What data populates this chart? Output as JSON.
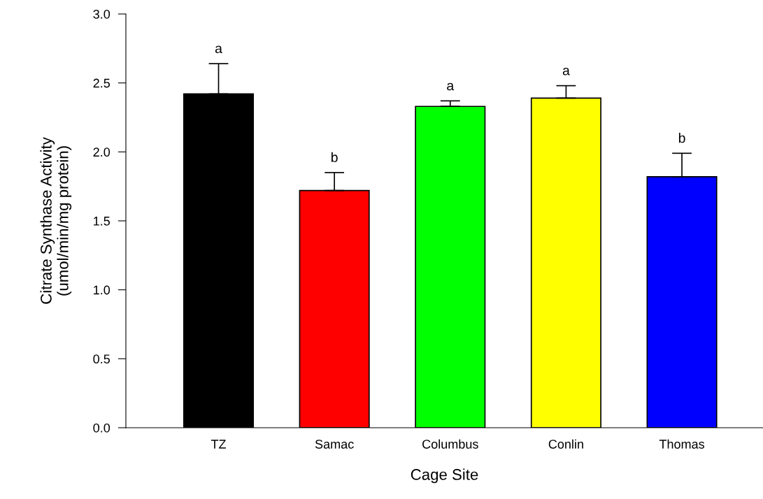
{
  "chart_data": {
    "type": "bar",
    "xlabel": "Cage Site",
    "ylabel": "Citrate Synthase Activity\n(umol/min/mg protein)",
    "categories": [
      "TZ",
      "Samac",
      "Columbus",
      "Conlin",
      "Thomas"
    ],
    "values": [
      2.42,
      1.72,
      2.33,
      2.39,
      1.82
    ],
    "colors": [
      "#000000",
      "#ff0000",
      "#00ff00",
      "#ffff00",
      "#0000ff"
    ],
    "errors": [
      [
        2.42,
        2.64
      ],
      [
        1.72,
        1.85
      ],
      [
        2.33,
        2.37
      ],
      [
        2.39,
        2.48
      ],
      [
        1.82,
        1.99
      ]
    ],
    "ylim": [
      0,
      3.0
    ],
    "yticks": [
      {
        "value": 0,
        "label": "0.0"
      },
      {
        "value": 0.5,
        "label": "0.5"
      },
      {
        "value": 1.0,
        "label": "1.0"
      },
      {
        "value": 1.5,
        "label": "1.5"
      },
      {
        "value": 2.0,
        "label": "2.0"
      },
      {
        "value": 2.5,
        "label": "2.5"
      },
      {
        "value": 3.0,
        "label": "3.0"
      }
    ],
    "grid": false,
    "legend": false,
    "annotations": [
      {
        "text": "a",
        "x": "TZ",
        "y": 2.64
      },
      {
        "text": "b",
        "x": "Samac",
        "y": 1.85
      },
      {
        "text": "a",
        "x": "Columbus",
        "y": 2.37
      },
      {
        "text": "a",
        "x": "Conlin",
        "y": 2.48
      },
      {
        "text": "b",
        "x": "Thomas",
        "y": 1.99
      }
    ]
  }
}
